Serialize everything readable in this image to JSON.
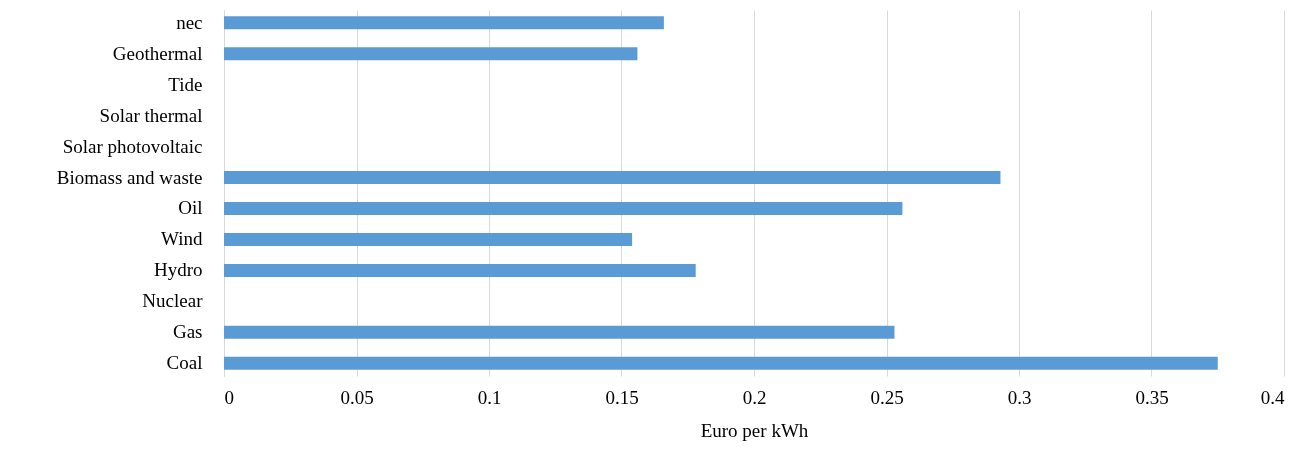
{
  "chart_data": {
    "type": "bar",
    "orientation": "horizontal",
    "xlabel": "Euro per kWh",
    "categories": [
      "nec",
      "Geothermal",
      "Tide",
      "Solar thermal",
      "Solar photovoltaic",
      "Biomass and waste",
      "Oil",
      "Wind",
      "Hydro",
      "Nuclear",
      "Gas",
      "Coal"
    ],
    "values": [
      0.166,
      0.156,
      null,
      null,
      null,
      0.293,
      0.256,
      0.154,
      0.178,
      null,
      0.253,
      0.375
    ],
    "color": "#5b9bd5",
    "xlim": [
      0,
      0.4
    ],
    "xticks": [
      0,
      0.05,
      0.1,
      0.15,
      0.2,
      0.25,
      0.3,
      0.35,
      0.4
    ],
    "grid": "x"
  }
}
